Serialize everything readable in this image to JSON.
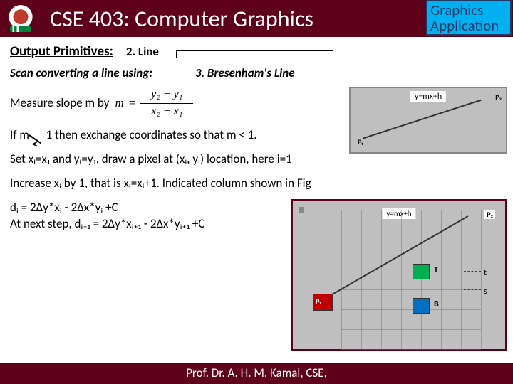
{
  "header": {
    "title": "CSE 403: Computer Graphics",
    "badge_line1": "Graphics",
    "badge_line2": "Application",
    "title_bg": "#5e0019",
    "badge_bg": "#00b0f0",
    "badge_border": "#203864"
  },
  "section": {
    "heading": "Output Primitives:",
    "item": "2. Line",
    "subtitle": "Scan converting a line using:",
    "algo": "3. Bresenham's Line"
  },
  "slope": {
    "prefix": "Measure slope m by",
    "m": "m",
    "eq": "=",
    "num": "y₂ − y₁",
    "den": "x₂ − x₁"
  },
  "ifline": {
    "pre": "If m",
    "post": " 1  then exchange coordinates so that m < 1."
  },
  "set_line": "Set xᵢ=x₁ and yᵢ=y₁, draw a pixel at (xᵢ, yᵢ) location, here i=1",
  "inc_line": "Increase xᵢ by 1, that is xᵢ=xᵢ+1. Indicated column shown in Fig",
  "d_lines": {
    "l1": "dᵢ = 2Δy*xᵢ - 2Δx*yᵢ +C",
    "l2": "At next step, dᵢ₊₁ = 2Δy*xᵢ₊₁ - 2Δx*yᵢ₊₁ +C"
  },
  "footer": "Prof. Dr. A. H. M. Kamal, CSE,",
  "fig1": {
    "eq_label": "y=mx+h",
    "p1": "P₁",
    "p2": "P₂",
    "bg": "#bfbfbf",
    "border": "#888888"
  },
  "fig2": {
    "eq_label": "y=mx+h",
    "p1": "P₁",
    "p2": "P₂",
    "T": "T",
    "B": "B",
    "t": "t",
    "s": "s",
    "colors": {
      "border": "#5e0019",
      "bg": "#bfbfbf",
      "p1_fill": "#c00000",
      "t_fill": "#00b050",
      "b_fill": "#0070c0",
      "line": "#333333"
    },
    "grid": {
      "cols": 7,
      "rows": 7,
      "cell": 28
    }
  }
}
